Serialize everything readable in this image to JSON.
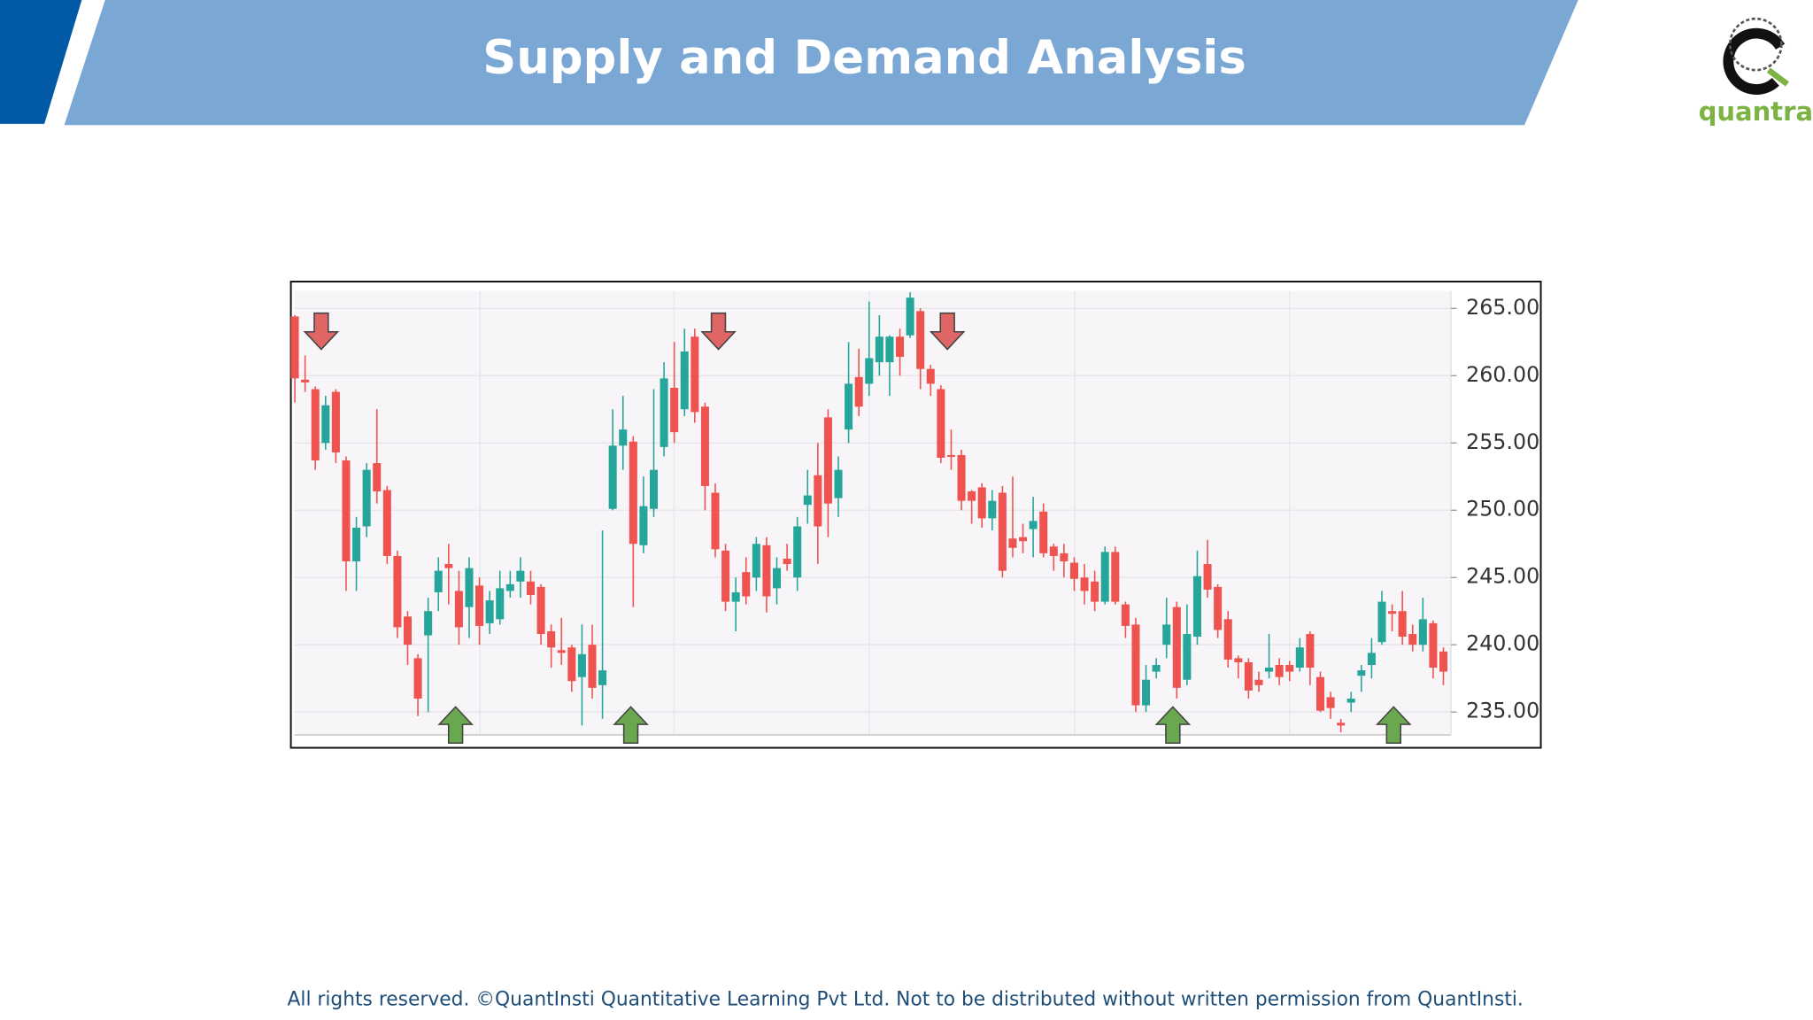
{
  "header": {
    "title": "Supply and Demand Analysis"
  },
  "logo": {
    "text": "quantra"
  },
  "chart_data": {
    "type": "candlestick",
    "up_color": "#26a69a",
    "down_color": "#ef5350",
    "grid": true,
    "y_axis_side": "right",
    "ylim": [
      233.3,
      266.3
    ],
    "yticks": [
      {
        "value": 235,
        "label": "235.00"
      },
      {
        "value": 240,
        "label": "240.00"
      },
      {
        "value": 245,
        "label": "245.00"
      },
      {
        "value": 250,
        "label": "250.00"
      },
      {
        "value": 255,
        "label": "255.00"
      },
      {
        "value": 260,
        "label": "260.00"
      },
      {
        "value": 265,
        "label": "265.00"
      }
    ],
    "open": [
      264.4,
      259.7,
      259,
      255,
      258.8,
      253.7,
      246.2,
      248.8,
      253.5,
      251.5,
      246.6,
      242.1,
      239,
      240.7,
      243.9,
      246,
      244,
      242.8,
      244.4,
      241.6,
      241.9,
      244,
      244.7,
      244.7,
      244.3,
      241,
      239.6,
      239.8,
      237.6,
      240,
      237,
      250.1,
      254.8,
      255.1,
      247.4,
      250.1,
      254.7,
      259.1,
      257.5,
      262.9,
      257.7,
      251.3,
      247,
      243.2,
      245.4,
      245,
      247.4,
      244.2,
      246.4,
      245,
      250.4,
      252.6,
      256.9,
      250.9,
      256,
      259.9,
      259.4,
      261,
      261,
      262.9,
      263,
      264.8,
      260.5,
      259,
      254.1,
      254.1,
      251.4,
      251.7,
      249.4,
      251.3,
      247.9,
      248,
      248.6,
      249.9,
      247.3,
      246.8,
      246.1,
      245,
      244.7,
      243.2,
      246.9,
      243,
      241.5,
      235.5,
      238,
      240,
      242.8,
      237.4,
      240.6,
      246,
      244.3,
      241.9,
      239,
      238.7,
      237.4,
      238,
      238.5,
      238.5,
      238.3,
      240.8,
      237.6,
      236.1,
      234.2,
      235.7,
      237.7,
      238.5,
      240.2,
      242.5,
      242.5,
      240.8,
      240,
      241.6,
      239.5
    ],
    "high": [
      264.5,
      261.5,
      259.2,
      258.5,
      259,
      254,
      249.5,
      253.5,
      257.5,
      251.8,
      247,
      242.5,
      239.3,
      243.5,
      246.5,
      247.5,
      245.5,
      246.5,
      245,
      244,
      245.5,
      245.5,
      246.5,
      245.5,
      244.5,
      241.5,
      242,
      240,
      241.5,
      241.5,
      248.5,
      257.5,
      258.5,
      255.5,
      252.5,
      259,
      261,
      262.5,
      263.5,
      263.5,
      258,
      252,
      247.5,
      245,
      246.5,
      248,
      248,
      246.5,
      247.5,
      249.5,
      253,
      255,
      257.5,
      254,
      262.5,
      262,
      265.5,
      264.5,
      263,
      263.5,
      266.2,
      265,
      260.8,
      259.3,
      256,
      254.5,
      251.5,
      252,
      251.5,
      251.8,
      252.5,
      249,
      251,
      250.5,
      247.5,
      247.5,
      246.5,
      246,
      245.5,
      247.3,
      247.3,
      243.2,
      242,
      238.5,
      239,
      243.5,
      243.2,
      243,
      247,
      247.8,
      244.5,
      242.5,
      239.2,
      239,
      238,
      240.8,
      239,
      238.8,
      240.5,
      241,
      238,
      236.5,
      234.5,
      236.5,
      238.5,
      240.5,
      244,
      243,
      244,
      241.5,
      243.5,
      241.8,
      239.8
    ],
    "low": [
      258,
      258.8,
      253,
      254.5,
      253.5,
      244,
      244,
      248,
      250.5,
      246,
      240.5,
      238.5,
      234.7,
      235,
      242.5,
      243,
      240,
      240.5,
      240,
      240.8,
      241.5,
      243.5,
      243.5,
      243,
      240,
      238.3,
      238.5,
      236.5,
      234,
      236,
      234.5,
      250,
      253,
      242.8,
      246.8,
      249.5,
      254,
      255,
      257,
      256.5,
      250,
      246.5,
      242.5,
      241,
      243,
      244,
      242.4,
      243,
      245.5,
      244,
      249,
      246,
      248,
      249.5,
      255,
      257,
      258.5,
      260,
      258.5,
      260,
      262.8,
      259,
      258.5,
      253.5,
      253,
      250,
      249,
      248.7,
      248.5,
      245,
      246.5,
      246.8,
      246.5,
      246.5,
      245.5,
      245,
      244,
      243,
      242.5,
      243,
      243,
      240.5,
      235,
      235,
      237.5,
      239,
      236,
      237,
      240,
      243.5,
      240.5,
      238.3,
      237.5,
      236,
      236.5,
      237.5,
      237,
      237.3,
      238,
      237,
      235,
      234.5,
      233.5,
      235,
      236.5,
      237.5,
      240,
      241,
      240,
      239.5,
      239.5,
      237.5,
      237
    ],
    "close": [
      259.8,
      259.5,
      253.7,
      257.8,
      254.3,
      246.2,
      248.7,
      253,
      251.4,
      246.6,
      241.3,
      240,
      236,
      242.5,
      245.5,
      245.7,
      241.3,
      245.7,
      241.4,
      243.3,
      244.2,
      244.5,
      245.5,
      243.7,
      240.8,
      239.8,
      239.4,
      237.3,
      239.3,
      236.8,
      238.1,
      254.8,
      256,
      247.5,
      250.3,
      253,
      259.8,
      255.8,
      261.8,
      257.3,
      251.8,
      247.1,
      243.2,
      243.9,
      243.6,
      247.5,
      243.6,
      245.7,
      246,
      248.8,
      251.1,
      248.8,
      250.5,
      253,
      259.4,
      257.7,
      261.3,
      262.9,
      262.9,
      261.4,
      265.8,
      260.5,
      259.4,
      253.9,
      254,
      250.7,
      250.7,
      249.4,
      250.7,
      245.5,
      247.2,
      247.7,
      249.2,
      246.8,
      246.6,
      246.2,
      244.9,
      244,
      243.2,
      246.9,
      243.2,
      241.4,
      235.5,
      237.4,
      238.5,
      241.5,
      236.8,
      240.8,
      245.1,
      244.1,
      241.1,
      238.9,
      238.7,
      236.6,
      237,
      238.3,
      237.6,
      238,
      239.8,
      238.3,
      235.1,
      235.3,
      234,
      236,
      238.1,
      239.4,
      243.2,
      242.3,
      240.6,
      240,
      241.9,
      238.3,
      238
    ]
  },
  "footer": {
    "text": "All rights reserved. ©QuantInsti Quantitative Learning Pvt Ltd. Not to be distributed without written permission from QuantInsti."
  }
}
